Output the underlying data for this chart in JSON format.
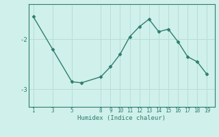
{
  "x": [
    1,
    3,
    5,
    6,
    8,
    9,
    10,
    11,
    12,
    13,
    14,
    15,
    16,
    17,
    18,
    19
  ],
  "y": [
    -1.55,
    -2.2,
    -2.85,
    -2.87,
    -2.75,
    -2.55,
    -2.3,
    -1.95,
    -1.75,
    -1.6,
    -1.85,
    -1.8,
    -2.05,
    -2.35,
    -2.45,
    -2.7
  ],
  "xticks": [
    1,
    3,
    5,
    8,
    9,
    10,
    11,
    12,
    13,
    14,
    15,
    16,
    17,
    18,
    19
  ],
  "yticks": [
    -3,
    -2
  ],
  "xlabel": "Humidex (Indice chaleur)",
  "bg_color": "#cff0eb",
  "line_color": "#2e7d6e",
  "grid_color": "#b8ddd8",
  "axis_color": "#2e7d6e",
  "xlim": [
    0.5,
    19.8
  ],
  "ylim": [
    -3.35,
    -1.3
  ]
}
